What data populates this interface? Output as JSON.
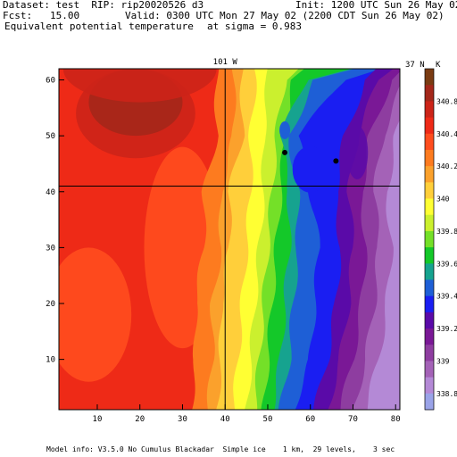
{
  "header": {
    "dataset": "Dataset: test  RIP: rip20020526 d3",
    "init": "Init: 1200 UTC Sun 26 May 02",
    "fcst": "Fcst:   15.00",
    "valid": "Valid: 0300 UTC Mon 27 May 02 (2200 CDT Sun 26 May 02)",
    "field": "Equivalent potential temperature",
    "level": "at sigma = 0.983"
  },
  "footer": {
    "model_info": "Model info: V3.5.0 No Cumulus Blackadar  Simple ice    1 km,  29 levels,    3 sec"
  },
  "chart_data": {
    "type": "heatmap",
    "title": "Equivalent potential temperature",
    "xlim": [
      1,
      81
    ],
    "ylim": [
      1,
      62
    ],
    "xticks": [
      10,
      20,
      30,
      40,
      50,
      60,
      70,
      80
    ],
    "yticks": [
      10,
      20,
      30,
      40,
      50,
      60
    ],
    "xtick_labels": [
      "10",
      "20",
      "30",
      "40",
      "50",
      "60",
      "70",
      "80"
    ],
    "ytick_labels": [
      "10",
      "20",
      "30",
      "40",
      "50",
      "60"
    ],
    "crosshair": {
      "x": 40,
      "y": 41,
      "x_label": "101 W",
      "y_label": "37 N"
    },
    "colorbar": {
      "units": "K",
      "labels": [
        "340.8",
        "340.4",
        "340.2",
        "340",
        "339.8",
        "339.6",
        "339.4",
        "339.2",
        "339",
        "338.8"
      ],
      "colors": [
        "#7a3b12",
        "#a4271a",
        "#cc2418",
        "#ee2a17",
        "#ff4d1e",
        "#fd7b1f",
        "#fba12c",
        "#ffcf3a",
        "#ffff33",
        "#cbf02e",
        "#74e028",
        "#14c829",
        "#16a38f",
        "#1e5fd6",
        "#1a1ef2",
        "#5a0aa8",
        "#7a1896",
        "#8e3da0",
        "#a462b7",
        "#b489d6",
        "#9aa3e8"
      ]
    },
    "markers": [
      {
        "x": 54,
        "y": 47
      },
      {
        "x": 66,
        "y": 45.5
      }
    ],
    "field_profile": {
      "description": "x-position of key isentropes (data units) versus y",
      "y": [
        1,
        10,
        20,
        30,
        40,
        50,
        60,
        62
      ],
      "orange_edge": [
        38,
        39,
        39,
        41,
        41,
        44,
        44,
        44
      ],
      "yellow_edge": [
        43,
        44,
        45,
        46,
        47,
        47,
        48,
        48
      ],
      "green_edge": [
        48,
        49,
        50,
        51,
        52,
        53,
        55,
        58
      ],
      "teal_edge": [
        52,
        54,
        55,
        56,
        56,
        54,
        60,
        70
      ],
      "blue_edge": [
        56,
        60,
        61,
        62,
        60,
        57,
        68,
        76
      ],
      "purple_edge": [
        64,
        67,
        69,
        70,
        69,
        71,
        76,
        79
      ]
    }
  }
}
